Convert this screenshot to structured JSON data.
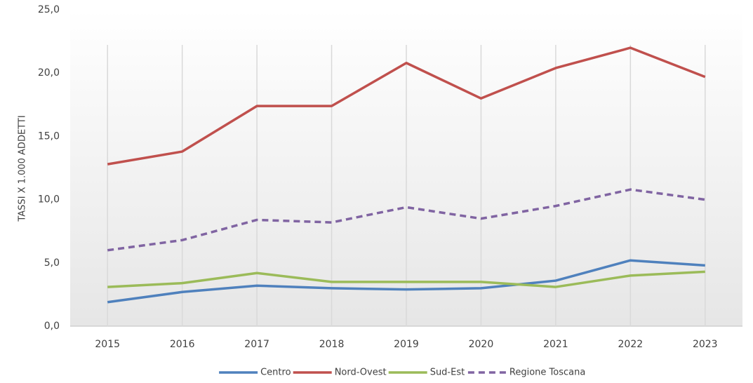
{
  "chart_data": {
    "type": "line",
    "y_label": "TASSI X 1.000 ADDETTI",
    "categories": [
      "2015",
      "2016",
      "2017",
      "2018",
      "2019",
      "2020",
      "2021",
      "2022",
      "2023"
    ],
    "series": [
      {
        "name": "Centro",
        "color": "#4f81bd",
        "values": [
          1.9,
          2.7,
          3.2,
          3.0,
          2.9,
          3.0,
          3.6,
          5.2,
          4.8
        ]
      },
      {
        "name": "Nord-Ovest",
        "color": "#c0504d",
        "values": [
          12.8,
          13.8,
          17.4,
          17.4,
          20.8,
          18.0,
          20.4,
          22.0,
          19.7
        ]
      },
      {
        "name": "Sud-Est",
        "color": "#9bbb59",
        "values": [
          3.1,
          3.4,
          4.2,
          3.5,
          3.5,
          3.5,
          3.1,
          4.0,
          4.3
        ]
      },
      {
        "name": "Regione Toscana",
        "color": "#8064a2",
        "dashed": true,
        "values": [
          6.0,
          6.8,
          8.4,
          8.2,
          9.4,
          8.5,
          9.5,
          10.8,
          10.0
        ]
      }
    ],
    "ylim": [
      0,
      25
    ],
    "yticks": [
      {
        "value": 0,
        "label": "0,0"
      },
      {
        "value": 5,
        "label": "5,0"
      },
      {
        "value": 10,
        "label": "10,0"
      },
      {
        "value": 15,
        "label": "15,0"
      },
      {
        "value": 20,
        "label": "20,0"
      },
      {
        "value": 25,
        "label": "25,0"
      }
    ],
    "legend": "bottom"
  }
}
